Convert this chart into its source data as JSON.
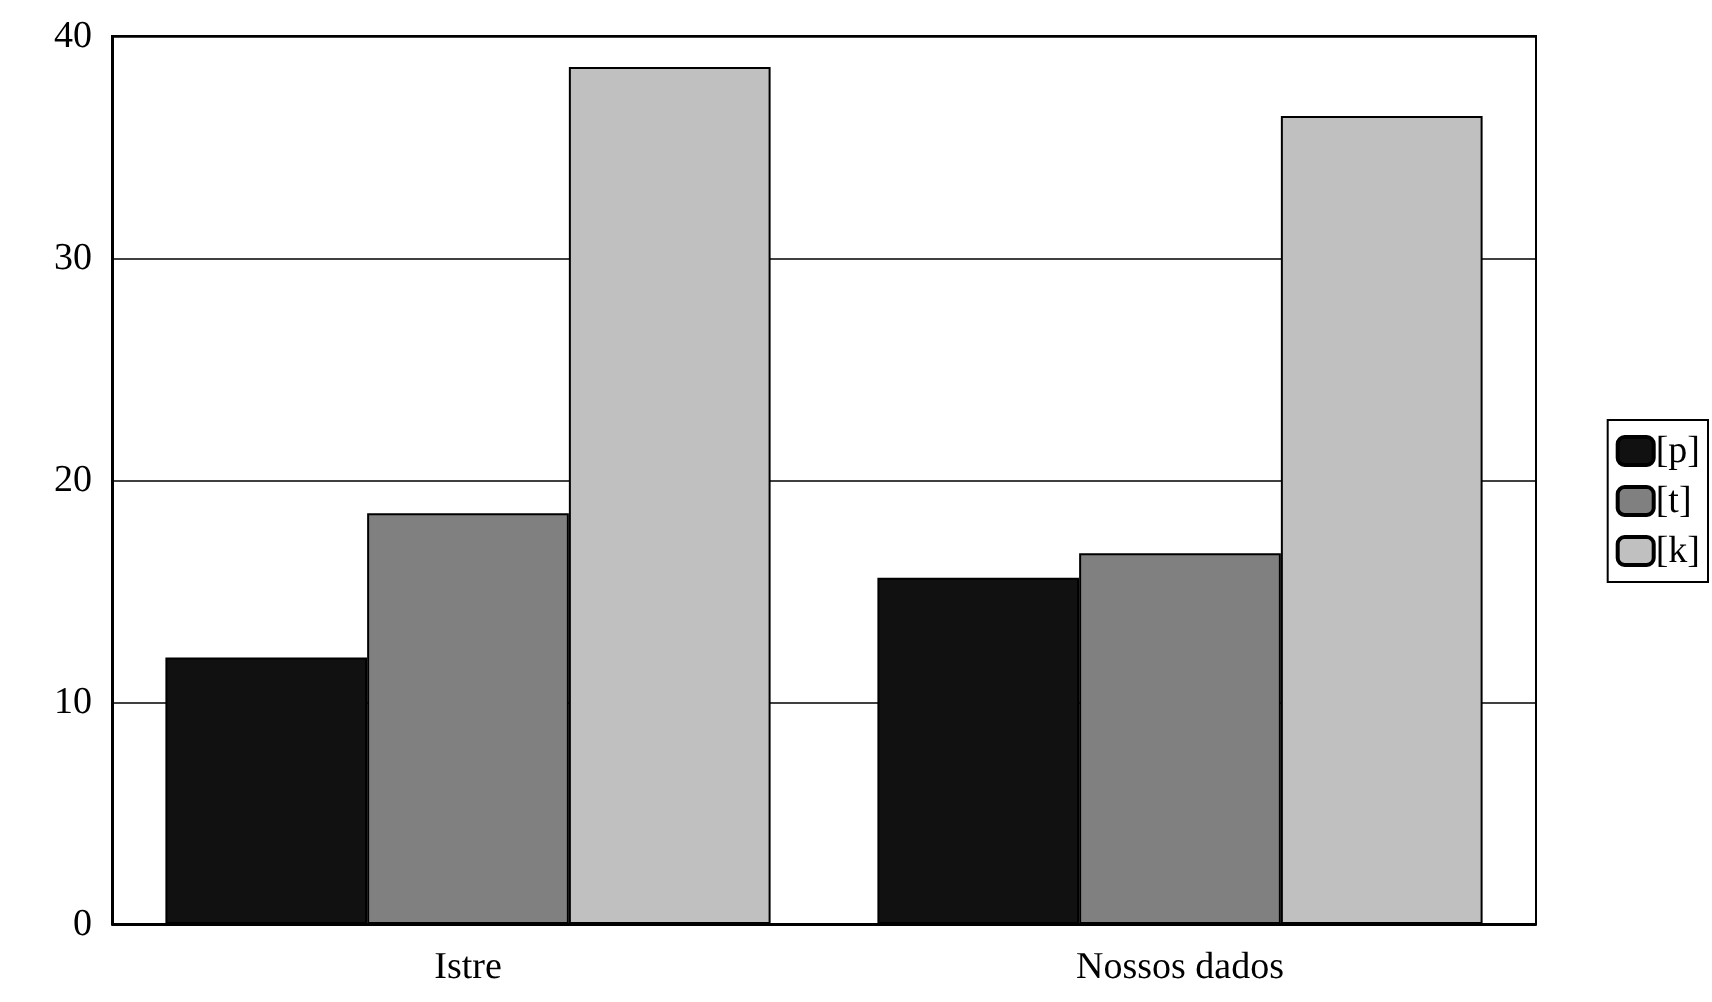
{
  "chart_data": {
    "type": "bar",
    "categories": [
      "Istre",
      "Nossos dados"
    ],
    "series": [
      {
        "name": "[p]",
        "color": "#111111",
        "values": [
          12,
          15.6
        ]
      },
      {
        "name": "[t]",
        "color": "#808080",
        "values": [
          18.5,
          16.7
        ]
      },
      {
        "name": "[k]",
        "color": "#c0c0c0",
        "values": [
          38.6,
          36.4
        ]
      }
    ],
    "ylim": [
      0,
      40
    ],
    "yticks": [
      0,
      10,
      20,
      30,
      40
    ],
    "grid": "y",
    "legend": "right"
  }
}
